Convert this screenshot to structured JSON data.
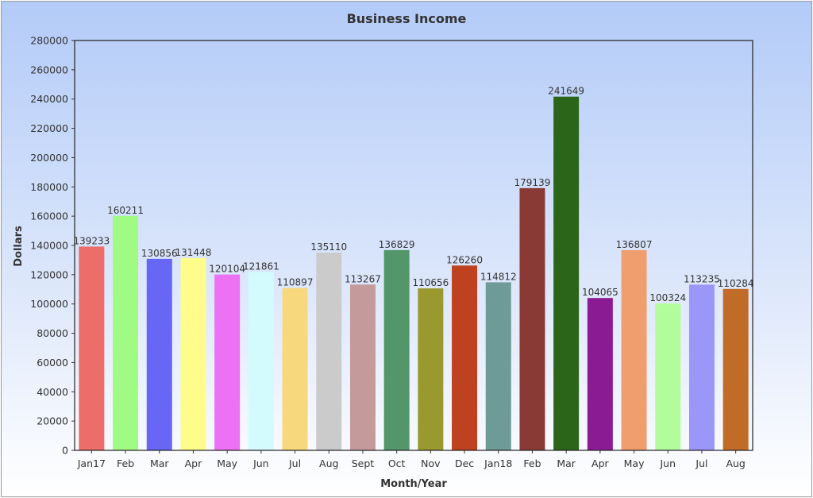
{
  "chart_data": {
    "type": "bar",
    "title": "Business Income",
    "xlabel": "Month/Year",
    "ylabel": "Dollars",
    "ylim": [
      0,
      280000
    ],
    "yticks": [
      0,
      20000,
      40000,
      60000,
      80000,
      100000,
      120000,
      140000,
      160000,
      180000,
      200000,
      220000,
      240000,
      260000,
      280000
    ],
    "grid": false,
    "categories": [
      "Jan17",
      "Feb",
      "Mar",
      "Apr",
      "May",
      "Jun",
      "Jul",
      "Aug",
      "Sept",
      "Oct",
      "Nov",
      "Dec",
      "Jan18",
      "Feb",
      "Mar",
      "Apr",
      "May",
      "Jun",
      "Jul",
      "Aug"
    ],
    "values": [
      139233,
      160211,
      130856,
      131448,
      120104,
      121861,
      110897,
      135110,
      113267,
      136829,
      110656,
      126260,
      114812,
      179139,
      241649,
      104065,
      136807,
      100324,
      113235,
      110284
    ],
    "colors": [
      "#ec6d69",
      "#a0fb84",
      "#6766f5",
      "#fefd8c",
      "#ec71f4",
      "#d3fbfd",
      "#f8d87c",
      "#cbcbcb",
      "#c59a9a",
      "#539669",
      "#99992f",
      "#be4220",
      "#6e9a98",
      "#8a3a35",
      "#2a6519",
      "#8b1b93",
      "#f19e6f",
      "#b3fc9c",
      "#9a97f9",
      "#c16b28"
    ]
  }
}
